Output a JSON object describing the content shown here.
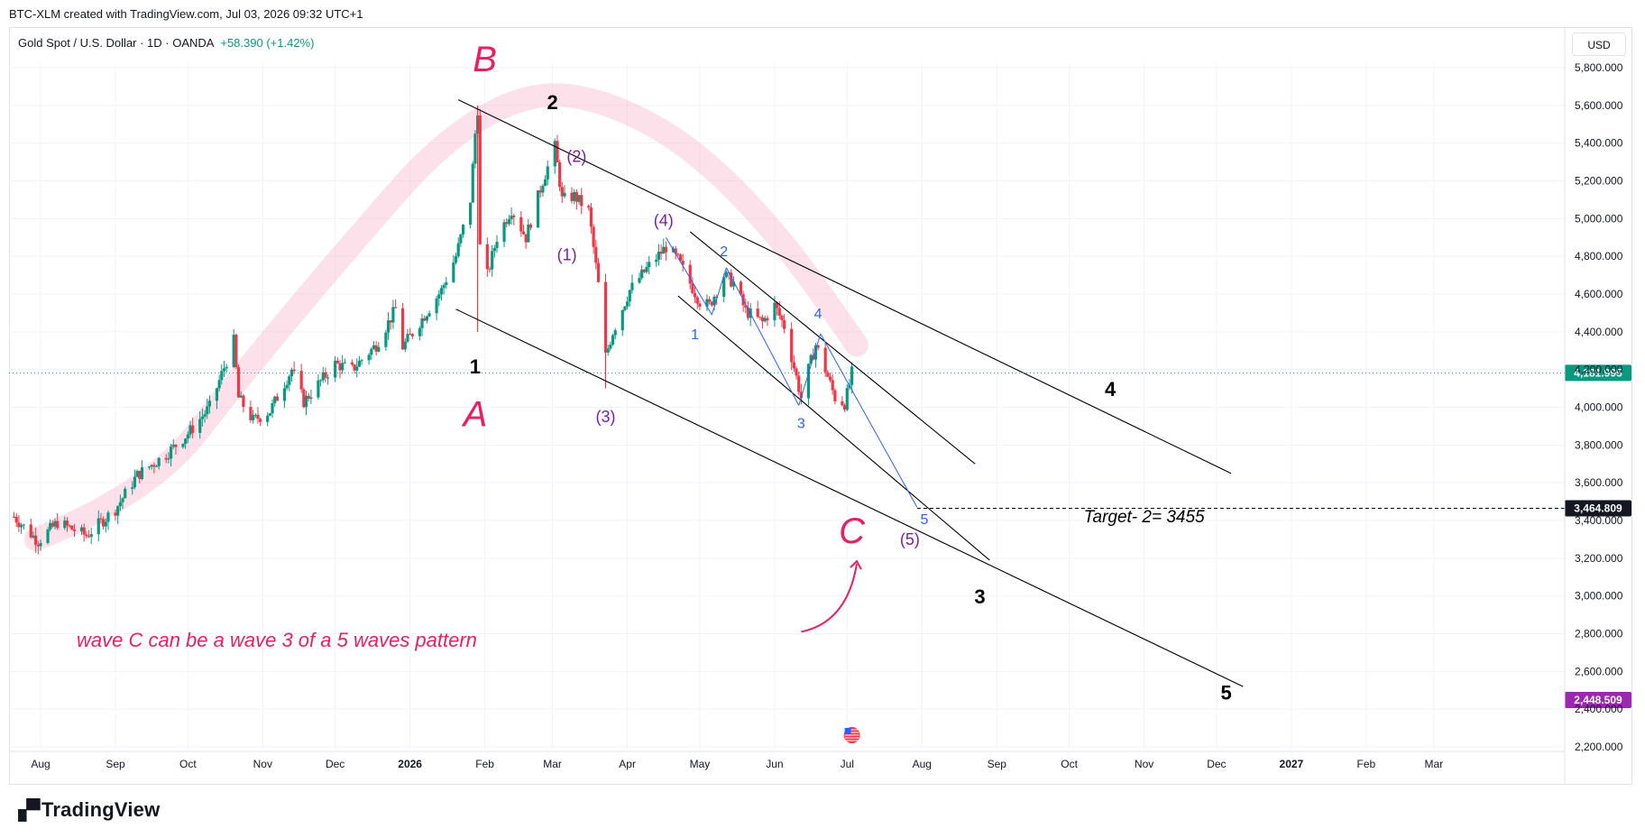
{
  "header": {
    "text": "BTC-XLM created with TradingView.com, Jul 03, 2026 09:32 UTC+1"
  },
  "legend": {
    "title": "Gold Spot / U.S. Dollar · 1D · OANDA",
    "change": "+58.390 (+1.42%)"
  },
  "currency": "USD",
  "branding": {
    "name": "TradingView"
  },
  "colors": {
    "up": "#089981",
    "down": "#f23645",
    "pink": "#e91e63",
    "purple": "#7b1fa2",
    "blue": "#2962ff",
    "purple_badge": "#9c27b0"
  },
  "chart_data": {
    "type": "candlestick",
    "title": "Gold Spot / U.S. Dollar · 1D · OANDA",
    "ylim": [
      2200,
      5900
    ],
    "y_ticks": [
      "2,200.000",
      "2,400.000",
      "2,600.000",
      "2,800.000",
      "3,000.000",
      "3,200.000",
      "3,400.000",
      "3,600.000",
      "3,800.000",
      "4,000.000",
      "4,200.000",
      "4,400.000",
      "4,600.000",
      "4,800.000",
      "5,000.000",
      "5,200.000",
      "5,400.000",
      "5,600.000",
      "5,800.000"
    ],
    "y_tick_values": [
      2200,
      2400,
      2600,
      2800,
      3000,
      3200,
      3400,
      3600,
      3800,
      4000,
      4200,
      4400,
      4600,
      4800,
      5000,
      5200,
      5400,
      5600,
      5800
    ],
    "x_ticks": [
      "Aug",
      "Sep",
      "Oct",
      "Nov",
      "Dec",
      "2026",
      "Feb",
      "Mar",
      "Apr",
      "May",
      "Jun",
      "Jul",
      "Aug",
      "Sep",
      "Oct",
      "Nov",
      "Dec",
      "2027",
      "Feb",
      "Mar"
    ],
    "x_tick_dates": [
      "2025-08-01",
      "2025-09-01",
      "2025-10-01",
      "2025-11-01",
      "2025-12-01",
      "2026-01-01",
      "2026-02-01",
      "2026-03-01",
      "2026-04-01",
      "2026-05-01",
      "2026-06-01",
      "2026-07-01",
      "2026-08-01",
      "2026-09-01",
      "2026-10-01",
      "2026-11-01",
      "2026-12-01",
      "2027-01-01",
      "2027-02-01",
      "2027-03-01"
    ],
    "price_path": [
      [
        "2025-07-21",
        3420
      ],
      [
        "2025-07-31",
        3290
      ],
      [
        "2025-08-08",
        3390
      ],
      [
        "2025-08-20",
        3320
      ],
      [
        "2025-09-01",
        3460
      ],
      [
        "2025-09-10",
        3640
      ],
      [
        "2025-09-22",
        3750
      ],
      [
        "2025-10-01",
        3860
      ],
      [
        "2025-10-10",
        4000
      ],
      [
        "2025-10-20",
        4350
      ],
      [
        "2025-10-22",
        4050
      ],
      [
        "2025-10-28",
        3930
      ],
      [
        "2025-11-04",
        3980
      ],
      [
        "2025-11-13",
        4200
      ],
      [
        "2025-11-18",
        4030
      ],
      [
        "2025-12-01",
        4230
      ],
      [
        "2025-12-08",
        4200
      ],
      [
        "2025-12-18",
        4330
      ],
      [
        "2025-12-26",
        4520
      ],
      [
        "2025-12-29",
        4320
      ],
      [
        "2026-01-05",
        4450
      ],
      [
        "2026-01-14",
        4620
      ],
      [
        "2026-01-20",
        4800
      ],
      [
        "2026-01-26",
        5100
      ],
      [
        "2026-01-28",
        5450
      ],
      [
        "2026-01-29",
        5580
      ],
      [
        "2026-01-30",
        4850
      ],
      [
        "2026-02-02",
        4700
      ],
      [
        "2026-02-06",
        4900
      ],
      [
        "2026-02-12",
        5050
      ],
      [
        "2026-02-18",
        4900
      ],
      [
        "2026-02-25",
        5200
      ],
      [
        "2026-03-02",
        5380
      ],
      [
        "2026-03-05",
        5100
      ],
      [
        "2026-03-10",
        5120
      ],
      [
        "2026-03-16",
        5040
      ],
      [
        "2026-03-20",
        4650
      ],
      [
        "2026-03-23",
        4270
      ],
      [
        "2026-03-26",
        4400
      ],
      [
        "2026-04-02",
        4620
      ],
      [
        "2026-04-10",
        4750
      ],
      [
        "2026-04-17",
        4850
      ],
      [
        "2026-04-22",
        4780
      ],
      [
        "2026-05-01",
        4560
      ],
      [
        "2026-05-05",
        4540
      ],
      [
        "2026-05-11",
        4700
      ],
      [
        "2026-05-15",
        4660
      ],
      [
        "2026-05-20",
        4510
      ],
      [
        "2026-05-27",
        4450
      ],
      [
        "2026-06-01",
        4540
      ],
      [
        "2026-06-05",
        4430
      ],
      [
        "2026-06-12",
        4050
      ],
      [
        "2026-06-15",
        4200
      ],
      [
        "2026-06-18",
        4330
      ],
      [
        "2026-06-22",
        4200
      ],
      [
        "2026-06-26",
        4050
      ],
      [
        "2026-06-30",
        4020
      ],
      [
        "2026-07-02",
        4120
      ],
      [
        "2026-07-03",
        4182
      ]
    ],
    "current_price": {
      "label": "4,181.995",
      "value": 4181.995
    },
    "target_level": {
      "label": "3,464.809",
      "value": 3464.809
    },
    "badge_price": {
      "label": "2,448.509",
      "value": 2448.509
    },
    "annotations": [
      {
        "text": "B",
        "date": "2026-02-01",
        "price": 5780,
        "style": "pink-big"
      },
      {
        "text": "A",
        "date": "2026-01-28",
        "price": 3900,
        "style": "pink-big"
      },
      {
        "text": "C",
        "date": "2026-07-03",
        "price": 3280,
        "style": "pink-big"
      },
      {
        "text": "2",
        "date": "2026-03-01",
        "price": 5580,
        "style": "black"
      },
      {
        "text": "1",
        "date": "2026-01-28",
        "price": 4180,
        "style": "black"
      },
      {
        "text": "3",
        "date": "2026-08-25",
        "price": 2960,
        "style": "black"
      },
      {
        "text": "4",
        "date": "2026-10-18",
        "price": 4060,
        "style": "black"
      },
      {
        "text": "5",
        "date": "2026-12-05",
        "price": 2450,
        "style": "black"
      },
      {
        "text": "(2)",
        "date": "2026-03-11",
        "price": 5300,
        "style": "purple"
      },
      {
        "text": "(1)",
        "date": "2026-03-07",
        "price": 4780,
        "style": "purple"
      },
      {
        "text": "(4)",
        "date": "2026-04-16",
        "price": 4960,
        "style": "purple"
      },
      {
        "text": "(3)",
        "date": "2026-03-23",
        "price": 3920,
        "style": "purple"
      },
      {
        "text": "(5)",
        "date": "2026-07-27",
        "price": 3270,
        "style": "purple"
      },
      {
        "text": "2",
        "date": "2026-05-11",
        "price": 4800,
        "style": "blue"
      },
      {
        "text": "1",
        "date": "2026-04-29",
        "price": 4360,
        "style": "blue"
      },
      {
        "text": "4",
        "date": "2026-06-19",
        "price": 4470,
        "style": "blue"
      },
      {
        "text": "3",
        "date": "2026-06-12",
        "price": 3890,
        "style": "blue"
      },
      {
        "text": "5",
        "date": "2026-08-02",
        "price": 3380,
        "style": "blue"
      }
    ],
    "target_text": "Target- 2= 3455",
    "note_text": "wave C can be a wave 3 of a 5 waves pattern",
    "trend_lines": [
      {
        "from": [
          "2026-01-21",
          5630
        ],
        "to": [
          "2026-12-07",
          3650
        ],
        "color": "#000000"
      },
      {
        "from": [
          "2026-01-20",
          4520
        ],
        "to": [
          "2026-12-12",
          2520
        ],
        "color": "#000000"
      },
      {
        "from": [
          "2026-04-27",
          4930
        ],
        "to": [
          "2026-08-23",
          3700
        ],
        "color": "#000000"
      },
      {
        "from": [
          "2026-04-22",
          4590
        ],
        "to": [
          "2026-08-29",
          3190
        ],
        "color": "#000000"
      },
      {
        "from": [
          "2026-04-17",
          4900
        ],
        "to": [
          "2026-05-06",
          4490
        ],
        "color": "#2962ff"
      },
      {
        "from": [
          "2026-05-06",
          4490
        ],
        "to": [
          "2026-05-12",
          4740
        ],
        "color": "#2962ff"
      },
      {
        "from": [
          "2026-05-12",
          4740
        ],
        "to": [
          "2026-06-11",
          4010
        ],
        "color": "#2962ff"
      },
      {
        "from": [
          "2026-06-11",
          4010
        ],
        "to": [
          "2026-06-20",
          4390
        ],
        "color": "#2962ff"
      },
      {
        "from": [
          "2026-06-20",
          4390
        ],
        "to": [
          "2026-07-30",
          3470
        ],
        "color": "#2962ff"
      }
    ],
    "arc_band": [
      [
        "2025-07-30",
        3300
      ],
      [
        "2025-09-15",
        3540
      ],
      [
        "2025-10-25",
        4200
      ],
      [
        "2025-12-10",
        4900
      ],
      [
        "2026-01-15",
        5420
      ],
      [
        "2026-02-20",
        5680
      ],
      [
        "2026-03-25",
        5620
      ],
      [
        "2026-04-30",
        5360
      ],
      [
        "2026-06-05",
        4880
      ],
      [
        "2026-07-05",
        4330
      ]
    ],
    "curved_arrow": {
      "from": [
        "2026-06-12",
        2810
      ],
      "control": [
        "2026-07-01",
        2860
      ],
      "to": [
        "2026-07-05",
        3170
      ]
    }
  }
}
